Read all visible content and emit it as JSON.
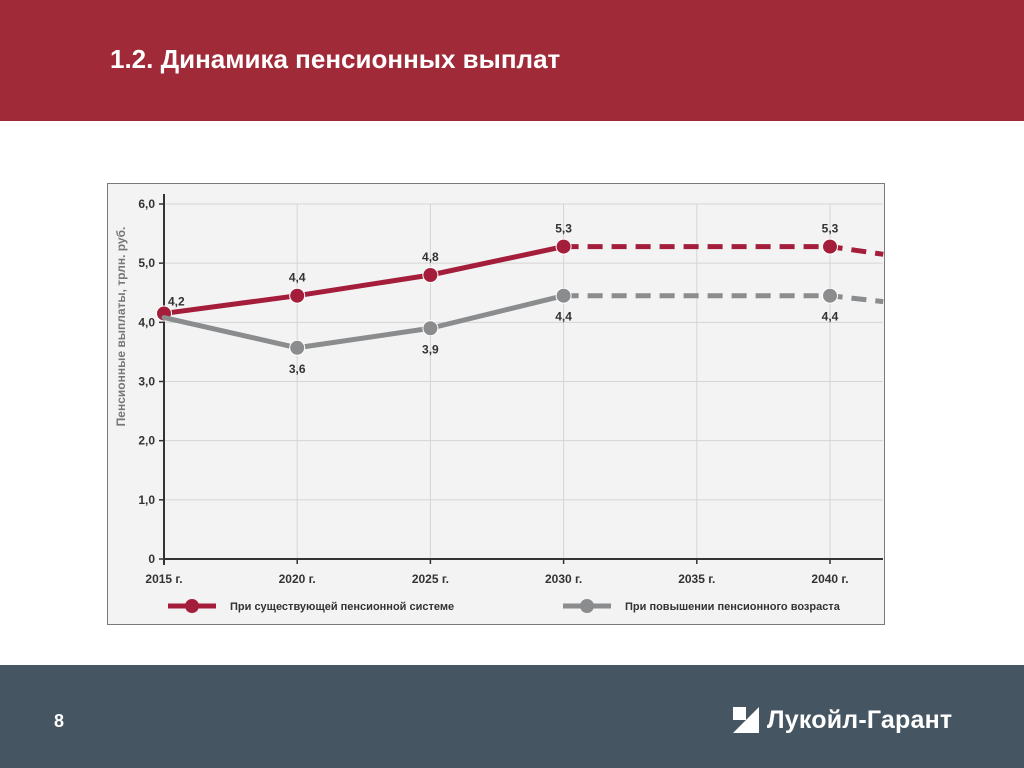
{
  "slide": {
    "title": "1.2. Динамика пенсионных выплат",
    "page_number": "8",
    "logo_text": "Лукойл-Гарант"
  },
  "colors": {
    "header_bg": "#a12a39",
    "footer_bg": "#455662",
    "series_current": "#a41e3c",
    "series_raised": "#8a8c8e",
    "plot_bg": "#f3f3f3"
  },
  "chart_data": {
    "type": "line",
    "title": "",
    "xlabel": "",
    "ylabel": "Пенсионные выплаты, трлн. руб.",
    "categories": [
      "2015 г.",
      "2020 г.",
      "2025 г.",
      "2030 г.",
      "2035 г.",
      "2040 г."
    ],
    "x": [
      2015,
      2020,
      2025,
      2030,
      2035,
      2040
    ],
    "ylim": [
      0,
      6
    ],
    "y_ticks": [
      "0",
      "1,0",
      "2,0",
      "3,0",
      "4,0",
      "5,0",
      "6,0"
    ],
    "y_tick_values": [
      0,
      1,
      2,
      3,
      4,
      5,
      6
    ],
    "grid": true,
    "legend_position": "bottom",
    "series": [
      {
        "name": "При существующей пенсионной системе",
        "color": "#a41e3c",
        "solid_points": [
          [
            2015,
            4.15
          ],
          [
            2020,
            4.45
          ],
          [
            2025,
            4.8
          ],
          [
            2030,
            5.28
          ]
        ],
        "dashed_points": [
          [
            2030,
            5.28
          ],
          [
            2040,
            5.28
          ],
          [
            2042,
            5.15
          ]
        ],
        "markers": [
          [
            2015,
            4.15
          ],
          [
            2020,
            4.45
          ],
          [
            2025,
            4.8
          ],
          [
            2030,
            5.28
          ],
          [
            2040,
            5.28
          ]
        ],
        "labels": [
          {
            "x": 2015,
            "y": 4.15,
            "text": "4,2",
            "pos": "right"
          },
          {
            "x": 2020,
            "y": 4.45,
            "text": "4,4",
            "pos": "above"
          },
          {
            "x": 2025,
            "y": 4.8,
            "text": "4,8",
            "pos": "above"
          },
          {
            "x": 2030,
            "y": 5.28,
            "text": "5,3",
            "pos": "above"
          },
          {
            "x": 2040,
            "y": 5.28,
            "text": "5,3",
            "pos": "above"
          }
        ]
      },
      {
        "name": "При повышении пенсионного возраста",
        "color": "#8a8c8e",
        "solid_points": [
          [
            2015,
            4.08
          ],
          [
            2020,
            3.57
          ],
          [
            2025,
            3.9
          ],
          [
            2030,
            4.45
          ]
        ],
        "dashed_points": [
          [
            2030,
            4.45
          ],
          [
            2040,
            4.45
          ],
          [
            2042,
            4.35
          ]
        ],
        "markers": [
          [
            2020,
            3.57
          ],
          [
            2025,
            3.9
          ],
          [
            2030,
            4.45
          ],
          [
            2040,
            4.45
          ]
        ],
        "labels": [
          {
            "x": 2020,
            "y": 3.57,
            "text": "3,6",
            "pos": "below"
          },
          {
            "x": 2025,
            "y": 3.9,
            "text": "3,9",
            "pos": "below"
          },
          {
            "x": 2030,
            "y": 4.45,
            "text": "4,4",
            "pos": "below"
          },
          {
            "x": 2040,
            "y": 4.45,
            "text": "4,4",
            "pos": "below"
          }
        ]
      }
    ]
  }
}
